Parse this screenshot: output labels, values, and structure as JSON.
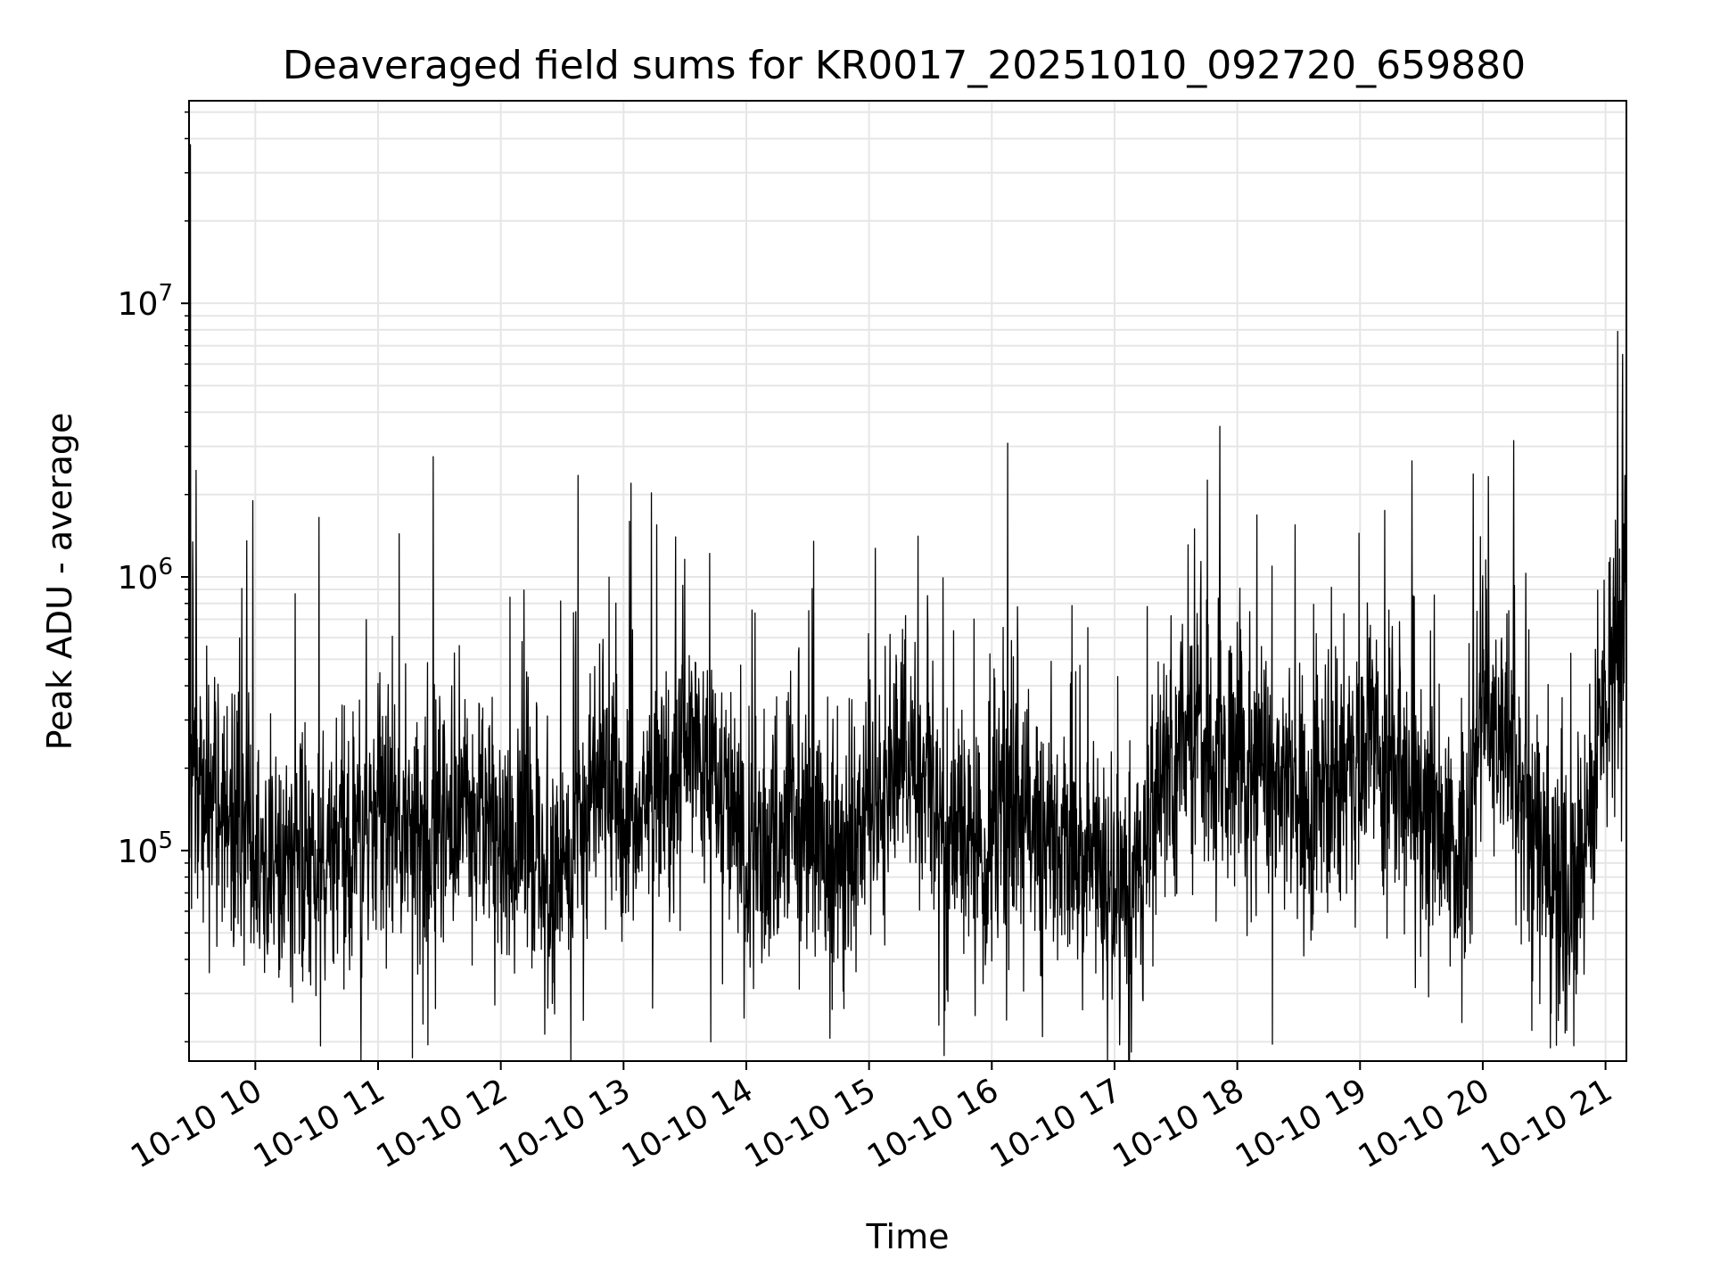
{
  "chart_data": {
    "type": "line",
    "title": "Deaveraged field sums for KR0017_20251010_092720_659880",
    "xlabel": "Time",
    "ylabel": "Peak ADU - average",
    "yscale": "log",
    "ylim": [
      17000,
      55000000
    ],
    "xlim_hours": [
      9.46,
      21.17
    ],
    "x_ticks": [
      {
        "hour": 10,
        "label": "10-10 10"
      },
      {
        "hour": 11,
        "label": "10-10 11"
      },
      {
        "hour": 12,
        "label": "10-10 12"
      },
      {
        "hour": 13,
        "label": "10-10 13"
      },
      {
        "hour": 14,
        "label": "10-10 14"
      },
      {
        "hour": 15,
        "label": "10-10 15"
      },
      {
        "hour": 16,
        "label": "10-10 16"
      },
      {
        "hour": 17,
        "label": "10-10 17"
      },
      {
        "hour": 18,
        "label": "10-10 18"
      },
      {
        "hour": 19,
        "label": "10-10 19"
      },
      {
        "hour": 20,
        "label": "10-10 20"
      },
      {
        "hour": 21,
        "label": "10-10 21"
      }
    ],
    "y_ticks": [
      {
        "value": 100000,
        "base": "10",
        "exp": "5"
      },
      {
        "value": 1000000,
        "base": "10",
        "exp": "6"
      },
      {
        "value": 10000000,
        "base": "10",
        "exp": "7"
      }
    ],
    "grid": true,
    "line_color": "#000000",
    "grid_color": "#e6e6e6",
    "series": [
      {
        "name": "field sums",
        "baseline_hours": [
          9.46,
          9.6,
          9.9,
          10.2,
          10.5,
          10.8,
          11.0,
          11.3,
          11.5,
          11.8,
          12.0,
          12.3,
          12.5,
          12.8,
          13.0,
          13.3,
          13.5,
          13.8,
          14.0,
          14.3,
          14.5,
          14.8,
          15.0,
          15.3,
          15.6,
          15.9,
          16.2,
          16.5,
          16.8,
          17.0,
          17.15,
          17.4,
          17.7,
          18.0,
          18.3,
          18.6,
          19.0,
          19.3,
          19.6,
          19.85,
          20.0,
          20.3,
          20.55,
          20.7,
          20.9,
          21.0,
          21.17
        ],
        "baseline_values": [
          200000,
          160000,
          120000,
          90000,
          85000,
          100000,
          150000,
          95000,
          120000,
          140000,
          110000,
          90000,
          80000,
          180000,
          130000,
          180000,
          250000,
          160000,
          90000,
          110000,
          120000,
          90000,
          150000,
          220000,
          130000,
          100000,
          140000,
          110000,
          90000,
          70000,
          70000,
          210000,
          250000,
          180000,
          220000,
          130000,
          250000,
          200000,
          140000,
          90000,
          380000,
          170000,
          70000,
          60000,
          160000,
          400000,
          600000
        ],
        "spikes": [
          {
            "hour": 9.47,
            "value": 38000000
          },
          {
            "hour": 9.98,
            "value": 1900000
          },
          {
            "hour": 10.52,
            "value": 1650000
          },
          {
            "hour": 11.45,
            "value": 2750000
          },
          {
            "hour": 12.63,
            "value": 2350000
          },
          {
            "hour": 13.06,
            "value": 2200000
          },
          {
            "hour": 13.27,
            "value": 1550000
          },
          {
            "hour": 13.71,
            "value": 20000
          },
          {
            "hour": 14.55,
            "value": 1350000
          },
          {
            "hour": 15.57,
            "value": 23000
          },
          {
            "hour": 16.12,
            "value": 24000
          },
          {
            "hour": 17.04,
            "value": 19500
          },
          {
            "hour": 17.65,
            "value": 1500000
          },
          {
            "hour": 18.47,
            "value": 1550000
          },
          {
            "hour": 19.2,
            "value": 1750000
          },
          {
            "hour": 20.55,
            "value": 19000
          },
          {
            "hour": 20.4,
            "value": 22000
          },
          {
            "hour": 21.1,
            "value": 7900000
          },
          {
            "hour": 21.14,
            "value": 6500000
          }
        ]
      }
    ]
  }
}
